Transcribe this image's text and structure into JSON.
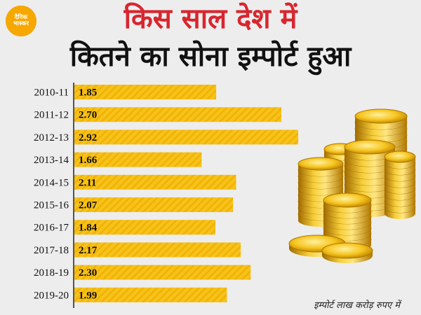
{
  "logo": {
    "line1": "दैनिक",
    "line2": "भास्कर"
  },
  "header": {
    "title_line1": "किस साल देश में",
    "title_line2": "कितने का सोना इम्पोर्ट हुआ"
  },
  "footnote": "इम्पोर्ट लाख करोड़ रुपए में",
  "colors": {
    "bar": "#f6c21c",
    "stripe": "#f2b200",
    "title_accent": "#d8262e",
    "background": "#ededed"
  },
  "chart_data": {
    "type": "bar",
    "orientation": "horizontal",
    "categories": [
      "2010-11",
      "2011-12",
      "2012-13",
      "2013-14",
      "2014-15",
      "2015-16",
      "2016-17",
      "2017-18",
      "2018-19",
      "2019-20"
    ],
    "values": [
      1.85,
      2.7,
      2.92,
      1.66,
      2.11,
      2.07,
      1.84,
      2.17,
      2.3,
      1.99
    ],
    "value_labels": [
      "1.85",
      "2.70",
      "2.92",
      "1.66",
      "2.11",
      "2.07",
      "1.84",
      "2.17",
      "2.30",
      "1.99"
    ],
    "xlim": [
      0,
      3.0
    ],
    "grid": false
  }
}
